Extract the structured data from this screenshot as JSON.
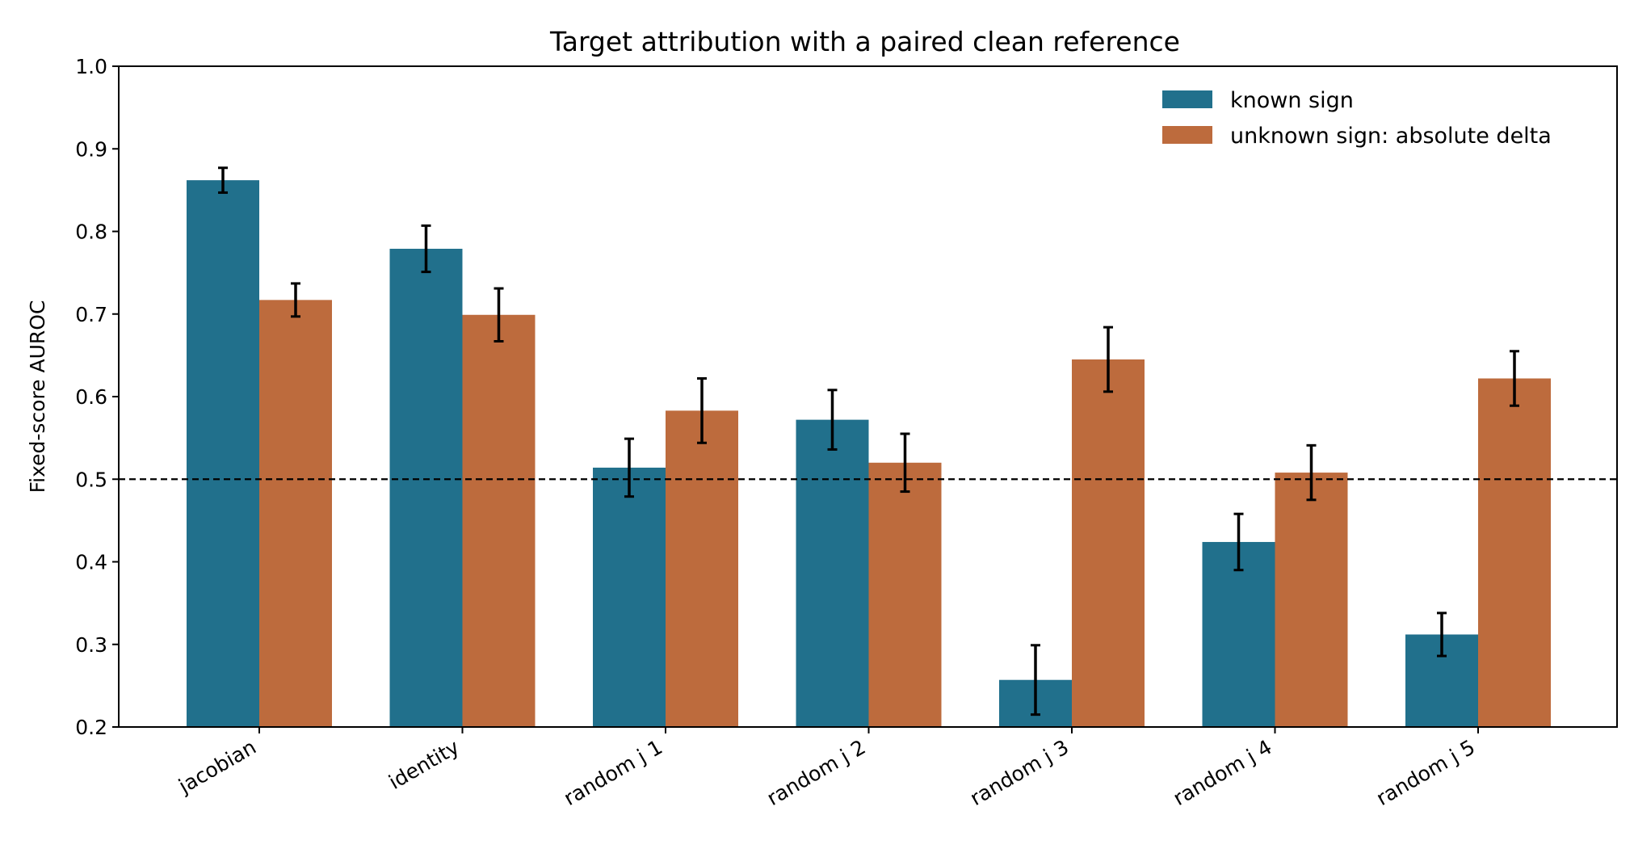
{
  "chart_data": {
    "type": "bar",
    "title": "Target attribution with a paired clean reference",
    "ylabel": "Fixed-score AUROC",
    "xlabel": "",
    "ylim": [
      0.2,
      1.0
    ],
    "yticks": [
      "0.2",
      "0.3",
      "0.4",
      "0.5",
      "0.6",
      "0.7",
      "0.8",
      "0.9",
      "1.0"
    ],
    "categories": [
      "jacobian",
      "identity",
      "random j 1",
      "random j 2",
      "random j 3",
      "random j 4",
      "random j 5"
    ],
    "series": [
      {
        "name": "known sign",
        "color": "#21708c",
        "values": [
          0.862,
          0.779,
          0.514,
          0.572,
          0.257,
          0.424,
          0.312
        ],
        "errors": [
          0.015,
          0.028,
          0.035,
          0.036,
          0.042,
          0.034,
          0.026
        ]
      },
      {
        "name": "unknown sign: absolute delta",
        "color": "#bd6b3d",
        "values": [
          0.717,
          0.699,
          0.583,
          0.52,
          0.645,
          0.508,
          0.622
        ],
        "errors": [
          0.02,
          0.032,
          0.039,
          0.035,
          0.039,
          0.033,
          0.033
        ]
      }
    ],
    "reference_line": 0.5,
    "grid": false,
    "legend": "top-right"
  }
}
